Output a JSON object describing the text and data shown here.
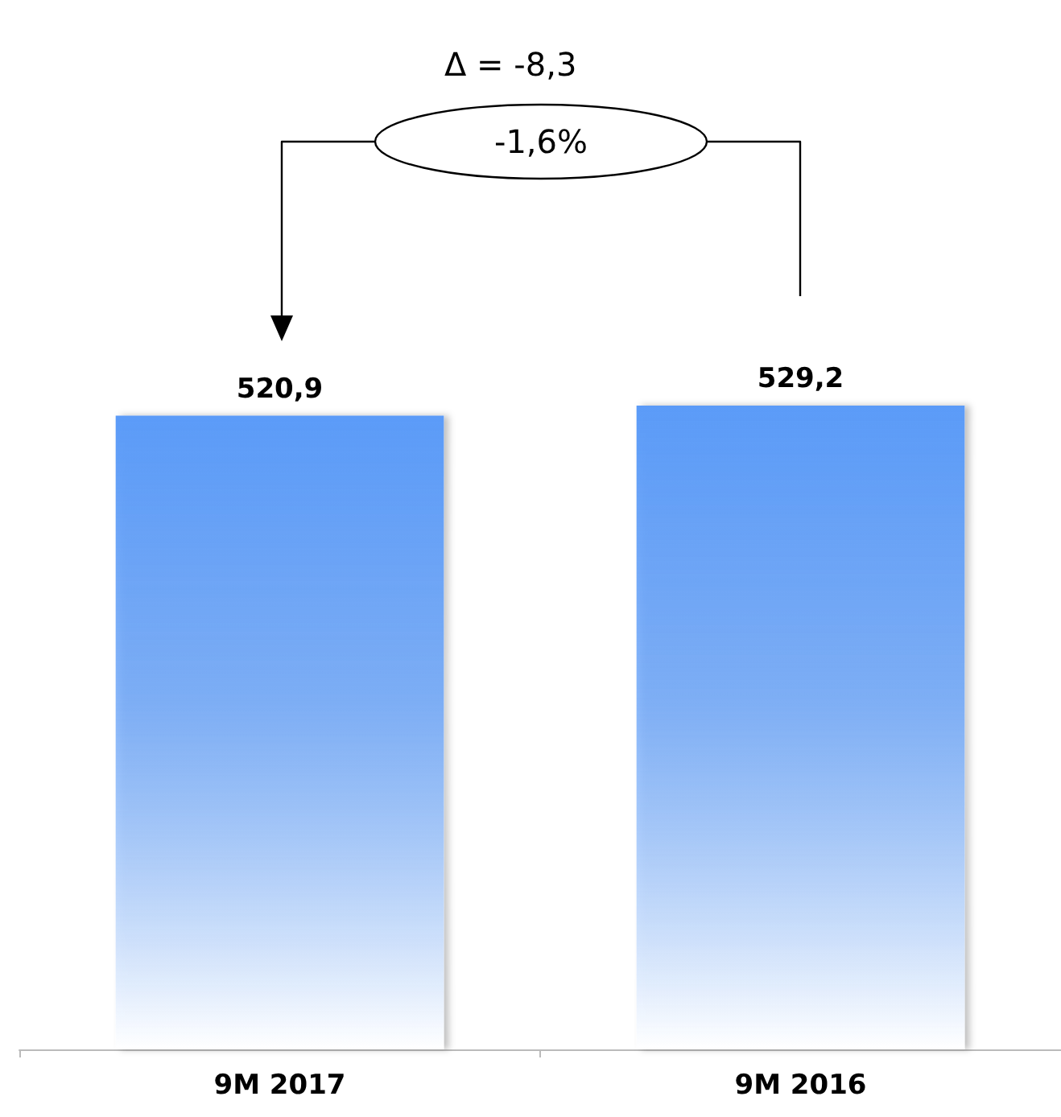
{
  "chart_data": {
    "type": "bar",
    "categories": [
      "9M 2017",
      "9M 2016"
    ],
    "values": [
      520.9,
      529.2
    ],
    "value_labels": [
      "520,9",
      "529,2"
    ],
    "color": "#5b9bf8",
    "annotations": [
      "Δ = -8,3",
      "-1,6%"
    ]
  }
}
